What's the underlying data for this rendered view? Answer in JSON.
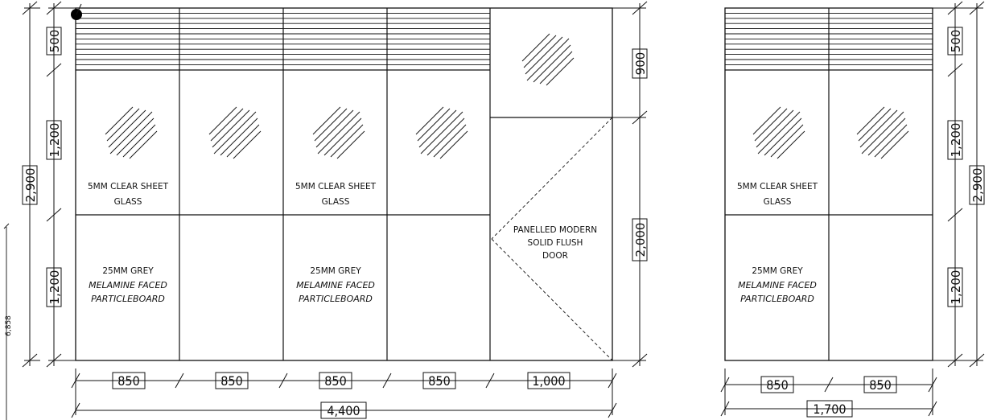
{
  "colors": {
    "line": "#111111",
    "background": "#ffffff"
  },
  "left_elevation": {
    "labels": {
      "glass_1_line1": "5MM CLEAR SHEET",
      "glass_1_line2": "GLASS",
      "glass_2_line1": "5MM CLEAR SHEET",
      "glass_2_line2": "GLASS",
      "board_1_line1": "25MM GREY",
      "board_1_line2": "MELAMINE FACED",
      "board_1_line3": "PARTICLEBOARD",
      "board_2_line1": "25MM GREY",
      "board_2_line2": "MELAMINE FACED",
      "board_2_line3": "PARTICLEBOARD",
      "door_line1": "PANELLED MODERN",
      "door_line2": "SOLID FLUSH",
      "door_line3": "DOOR"
    },
    "dims": {
      "bay_1": "850",
      "bay_2": "850",
      "bay_3": "850",
      "bay_4": "850",
      "door_width": "1,000",
      "total_width": "4,400",
      "louvre_height": "500",
      "glass_height": "1,200",
      "board_height": "1,200",
      "total_height": "2,900",
      "transom_height": "900",
      "door_height": "2,000",
      "overall_length": "6,858"
    }
  },
  "right_elevation": {
    "labels": {
      "glass_line1": "5MM CLEAR SHEET",
      "glass_line2": "GLASS",
      "board_line1": "25MM GREY",
      "board_line2": "MELAMINE FACED",
      "board_line3": "PARTICLEBOARD"
    },
    "dims": {
      "bay_1": "850",
      "bay_2": "850",
      "total_width": "1,700",
      "louvre_height": "500",
      "glass_height": "1,200",
      "board_height": "1,200",
      "total_height": "2,900"
    }
  }
}
